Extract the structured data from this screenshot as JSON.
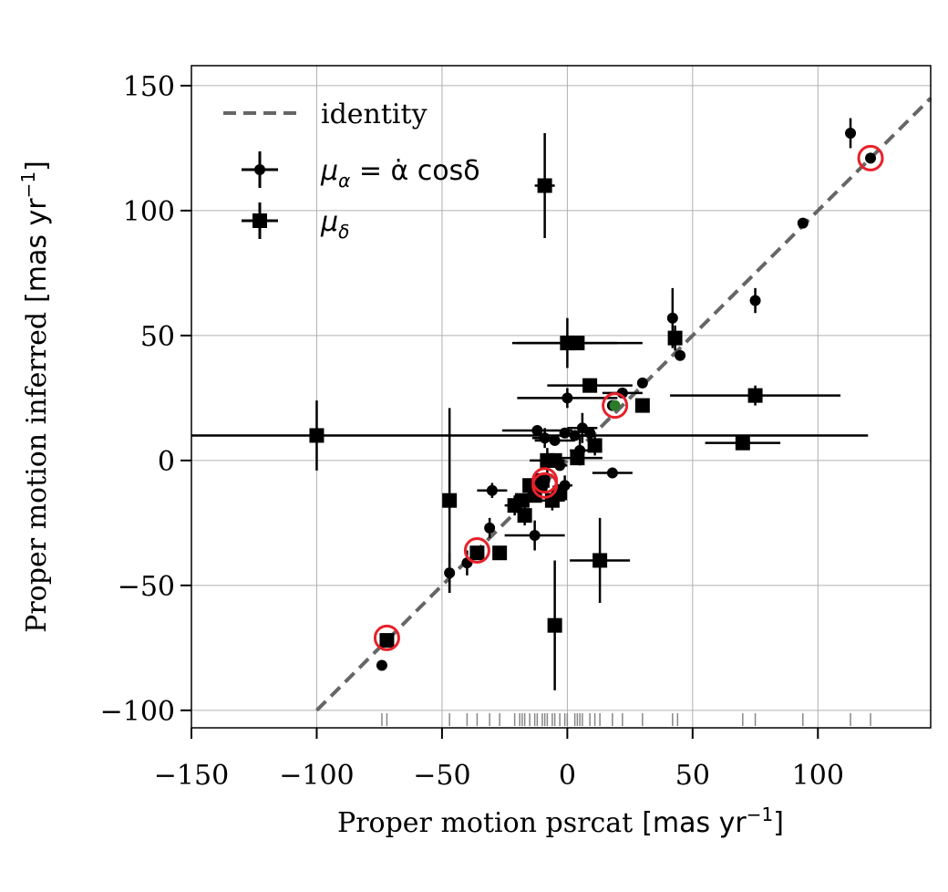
{
  "chart_data": {
    "type": "scatter",
    "xlabel": "Proper motion psrcat",
    "xlabel_unit": "[mas yr",
    "ylabel": "Proper motion inferred",
    "ylabel_unit": "[mas yr",
    "unit_exponent": "−1",
    "xlim": [
      -150,
      145
    ],
    "ylim": [
      -107,
      158
    ],
    "xticks": [
      -150,
      -100,
      -50,
      0,
      50,
      100
    ],
    "xtick_labels": [
      "−150",
      "−100",
      "−50",
      "0",
      "50",
      "100"
    ],
    "yticks": [
      -100,
      -50,
      0,
      50,
      100,
      150
    ],
    "ytick_labels": [
      "−100",
      "−50",
      "0",
      "50",
      "100",
      "150"
    ],
    "grid": true,
    "legend_position": "top-left",
    "legend": [
      {
        "key": "identity",
        "label": "identity",
        "style": "dashed-line"
      },
      {
        "key": "mu_alpha",
        "label_symbol": "μ",
        "label_sub": "α",
        "label_rest": " = α̇ cosδ",
        "marker": "circle"
      },
      {
        "key": "mu_delta",
        "label_symbol": "μ",
        "label_sub": "δ",
        "marker": "square"
      }
    ],
    "identity_line": {
      "x": [
        -100,
        145
      ],
      "y": [
        -100,
        145
      ],
      "color": "#666666"
    },
    "series": [
      {
        "key": "mu_alpha",
        "marker": "circle",
        "color": "#000000",
        "points": [
          {
            "x": 121,
            "y": 121
          },
          {
            "x": 113,
            "y": 131,
            "yerr": 6
          },
          {
            "x": 94,
            "y": 95
          },
          {
            "x": 75,
            "y": 64,
            "yerr": 5
          },
          {
            "x": 45,
            "y": 42
          },
          {
            "x": 42,
            "y": 57,
            "yerr": 12
          },
          {
            "x": 30,
            "y": 31
          },
          {
            "x": 22,
            "y": 27,
            "xerr": 8
          },
          {
            "x": 18,
            "y": 22
          },
          {
            "x": 0,
            "y": 25,
            "xerr": 20,
            "yerr": 4
          },
          {
            "x": 18,
            "y": -5,
            "xerr": 8
          },
          {
            "x": 6,
            "y": 13,
            "xerr": 6,
            "yerr": 6
          },
          {
            "x": 3,
            "y": 10,
            "xerr": 6
          },
          {
            "x": -1,
            "y": 11
          },
          {
            "x": 9,
            "y": 11
          },
          {
            "x": -5,
            "y": 8,
            "xerr": 8
          },
          {
            "x": -9,
            "y": 9,
            "xerr": 5,
            "yerr": 4
          },
          {
            "x": -12,
            "y": 12,
            "xerr": 14
          },
          {
            "x": 5,
            "y": 4,
            "xerr": 4,
            "yerr": 6
          },
          {
            "x": -3,
            "y": -2,
            "xerr": 3
          },
          {
            "x": -1,
            "y": -10,
            "xerr": 3,
            "yerr": 4
          },
          {
            "x": -9,
            "y": -8
          },
          {
            "x": -10,
            "y": -11
          },
          {
            "x": -30,
            "y": -12,
            "xerr": 6,
            "yerr": 3
          },
          {
            "x": -13,
            "y": -30,
            "xerr": 12,
            "yerr": 6
          },
          {
            "x": -31,
            "y": -27,
            "yerr": 4
          },
          {
            "x": -36,
            "y": -37
          },
          {
            "x": -40,
            "y": -41,
            "yerr": 5
          },
          {
            "x": -47,
            "y": -45,
            "yerr": 8
          },
          {
            "x": -74,
            "y": -82
          }
        ]
      },
      {
        "key": "mu_delta",
        "marker": "square",
        "color": "#000000",
        "points": [
          {
            "x": -9,
            "y": 110,
            "xerr": 4,
            "yerr": 21
          },
          {
            "x": -100,
            "y": 10,
            "xerr": 220,
            "yerr": 14
          },
          {
            "x": 0,
            "y": 47,
            "xerr": 20,
            "yerr": 10
          },
          {
            "x": 4,
            "y": 47,
            "xerr": 26
          },
          {
            "x": 43,
            "y": 49,
            "yerr": 5
          },
          {
            "x": 9,
            "y": 30,
            "xerr": 17
          },
          {
            "x": 75,
            "y": 26,
            "xerr": 34,
            "yerr": 4
          },
          {
            "x": 30,
            "y": 22
          },
          {
            "x": 70,
            "y": 7,
            "xerr": 15
          },
          {
            "x": 11,
            "y": 6,
            "yerr": 4
          },
          {
            "x": 4,
            "y": 1,
            "xerr": 10
          },
          {
            "x": -5,
            "y": 0
          },
          {
            "x": -8,
            "y": 0,
            "xerr": 7,
            "yerr": 5
          },
          {
            "x": -10,
            "y": -8
          },
          {
            "x": -15,
            "y": -10
          },
          {
            "x": -13,
            "y": -14
          },
          {
            "x": -18,
            "y": -16
          },
          {
            "x": -21,
            "y": -18,
            "xerr": 4,
            "yerr": 4
          },
          {
            "x": -17,
            "y": -22,
            "yerr": 4
          },
          {
            "x": -6,
            "y": -16,
            "xerr": 5,
            "yerr": 4
          },
          {
            "x": -3,
            "y": -13
          },
          {
            "x": -47,
            "y": -16,
            "yerr": 37
          },
          {
            "x": -36,
            "y": -37
          },
          {
            "x": -27,
            "y": -37
          },
          {
            "x": 13,
            "y": -40,
            "xerr": 12,
            "yerr": 17
          },
          {
            "x": -5,
            "y": -66,
            "yerr": 26
          },
          {
            "x": -72,
            "y": -72
          }
        ]
      }
    ],
    "highlight_rings": {
      "color": "#e8212a",
      "points": [
        {
          "x": 121,
          "y": 121
        },
        {
          "x": 19,
          "y": 22
        },
        {
          "x": -9,
          "y": -8
        },
        {
          "x": -9,
          "y": -10
        },
        {
          "x": -36,
          "y": -36
        },
        {
          "x": -72,
          "y": -71
        }
      ]
    },
    "highlight_point": {
      "x": 19,
      "y": 22,
      "color": "#2a7a2a"
    },
    "rug_x": [
      -74,
      -72,
      -47,
      -40,
      -36,
      -31,
      -27,
      -21,
      -19,
      -18,
      -17,
      -15,
      -13,
      -12,
      -10,
      -9,
      -8,
      -6,
      -5,
      -3,
      -1,
      0,
      3,
      4,
      5,
      6,
      9,
      11,
      13,
      18,
      22,
      30,
      42,
      44,
      70,
      75,
      94,
      113,
      121
    ]
  }
}
